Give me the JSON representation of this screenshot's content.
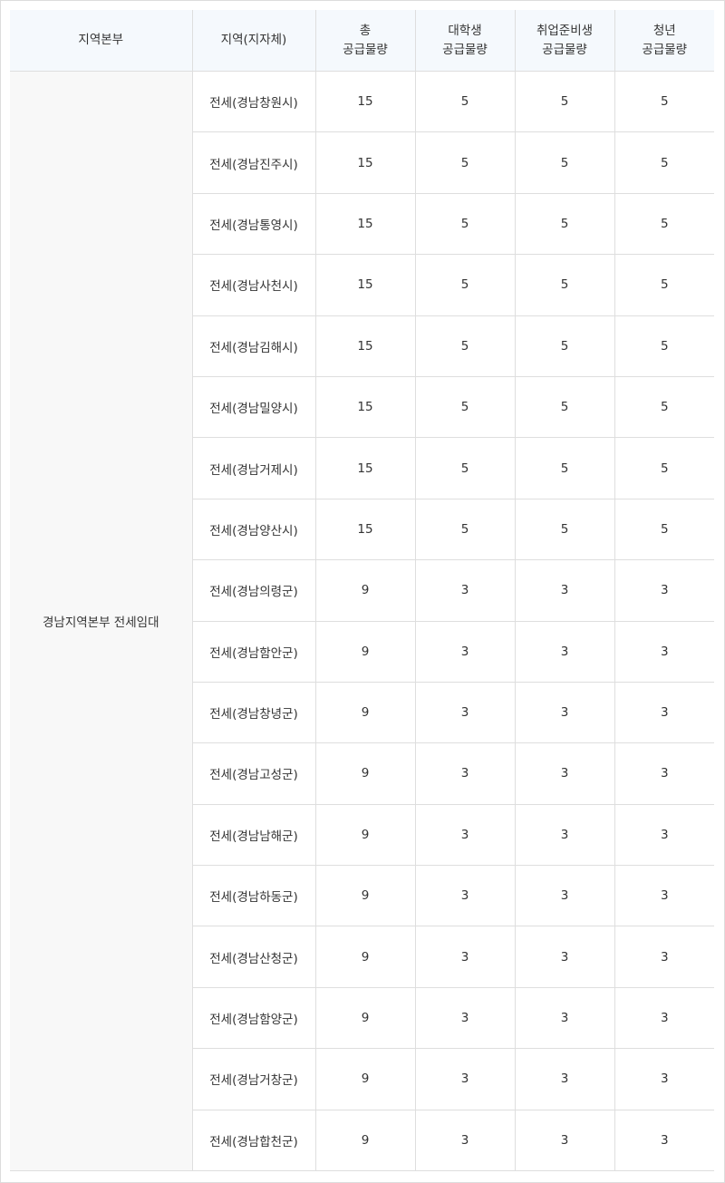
{
  "headers": {
    "hq": "지역본부",
    "area": "지역(지자체)",
    "total": [
      "총",
      "공급물량"
    ],
    "student": [
      "대학생",
      "공급물량"
    ],
    "jobseeker": [
      "취업준비생",
      "공급물량"
    ],
    "youth": [
      "청년",
      "공급물량"
    ]
  },
  "hq_name": "경남지역본부 전세임대",
  "rows": [
    {
      "area": "전세(경남창원시)",
      "total": "15",
      "student": "5",
      "jobseeker": "5",
      "youth": "5"
    },
    {
      "area": "전세(경남진주시)",
      "total": "15",
      "student": "5",
      "jobseeker": "5",
      "youth": "5"
    },
    {
      "area": "전세(경남통영시)",
      "total": "15",
      "student": "5",
      "jobseeker": "5",
      "youth": "5"
    },
    {
      "area": "전세(경남사천시)",
      "total": "15",
      "student": "5",
      "jobseeker": "5",
      "youth": "5"
    },
    {
      "area": "전세(경남김해시)",
      "total": "15",
      "student": "5",
      "jobseeker": "5",
      "youth": "5"
    },
    {
      "area": "전세(경남밀양시)",
      "total": "15",
      "student": "5",
      "jobseeker": "5",
      "youth": "5"
    },
    {
      "area": "전세(경남거제시)",
      "total": "15",
      "student": "5",
      "jobseeker": "5",
      "youth": "5"
    },
    {
      "area": "전세(경남양산시)",
      "total": "15",
      "student": "5",
      "jobseeker": "5",
      "youth": "5"
    },
    {
      "area": "전세(경남의령군)",
      "total": "9",
      "student": "3",
      "jobseeker": "3",
      "youth": "3"
    },
    {
      "area": "전세(경남함안군)",
      "total": "9",
      "student": "3",
      "jobseeker": "3",
      "youth": "3"
    },
    {
      "area": "전세(경남창녕군)",
      "total": "9",
      "student": "3",
      "jobseeker": "3",
      "youth": "3"
    },
    {
      "area": "전세(경남고성군)",
      "total": "9",
      "student": "3",
      "jobseeker": "3",
      "youth": "3"
    },
    {
      "area": "전세(경남남해군)",
      "total": "9",
      "student": "3",
      "jobseeker": "3",
      "youth": "3"
    },
    {
      "area": "전세(경남하동군)",
      "total": "9",
      "student": "3",
      "jobseeker": "3",
      "youth": "3"
    },
    {
      "area": "전세(경남산청군)",
      "total": "9",
      "student": "3",
      "jobseeker": "3",
      "youth": "3"
    },
    {
      "area": "전세(경남함양군)",
      "total": "9",
      "student": "3",
      "jobseeker": "3",
      "youth": "3"
    },
    {
      "area": "전세(경남거창군)",
      "total": "9",
      "student": "3",
      "jobseeker": "3",
      "youth": "3"
    },
    {
      "area": "전세(경남합천군)",
      "total": "9",
      "student": "3",
      "jobseeker": "3",
      "youth": "3"
    }
  ]
}
